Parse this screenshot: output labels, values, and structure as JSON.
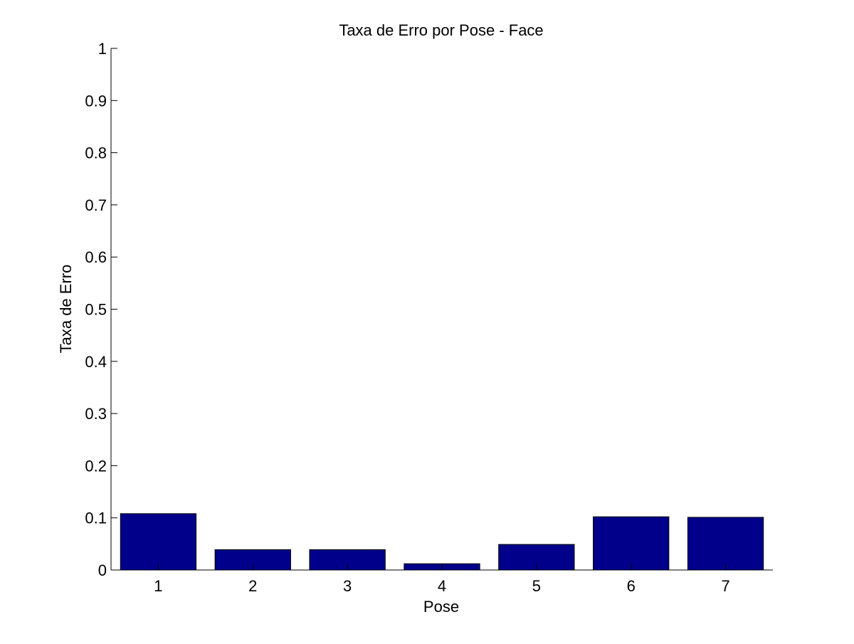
{
  "chart_data": {
    "type": "bar",
    "title": "Taxa de Erro por Pose - Face",
    "xlabel": "Pose",
    "ylabel": "Taxa de Erro",
    "categories": [
      "1",
      "2",
      "3",
      "4",
      "5",
      "6",
      "7"
    ],
    "values": [
      0.108,
      0.039,
      0.039,
      0.012,
      0.049,
      0.102,
      0.101
    ],
    "ylim": [
      0,
      1
    ],
    "yticks": [
      "0",
      "0.1",
      "0.2",
      "0.3",
      "0.4",
      "0.5",
      "0.6",
      "0.7",
      "0.8",
      "0.9",
      "1"
    ],
    "grid": false,
    "legend": "none",
    "bar_color": "#00008b"
  }
}
